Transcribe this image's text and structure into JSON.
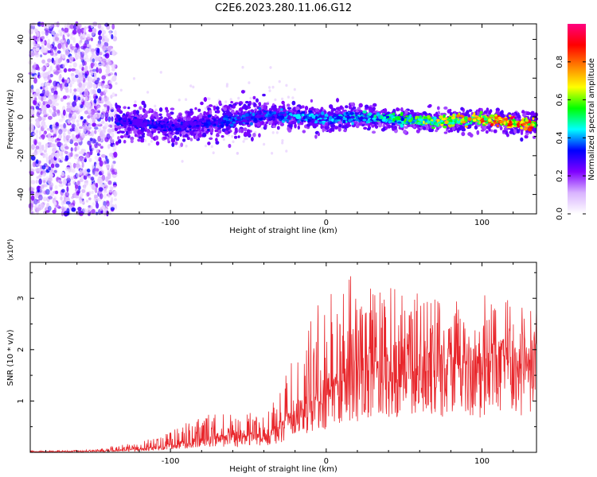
{
  "figure_title": "C2E6.2023.280.11.06.G12",
  "chart_data": [
    {
      "type": "heatmap",
      "xlabel": "Height of straight line (km)",
      "ylabel": "Frequency (Hz)",
      "xlim": [
        -190,
        135
      ],
      "ylim": [
        -50,
        48
      ],
      "x_ticks": [
        -100,
        0,
        100
      ],
      "y_ticks": [
        -40,
        -20,
        0,
        20,
        40
      ],
      "colorbar": {
        "label": "Normalized spectral amplitude",
        "range": [
          0.0,
          1.0
        ],
        "ticks": [
          0.0,
          0.2,
          0.4,
          0.6,
          0.8
        ],
        "colormap": [
          "#ffffff",
          "#d9b3ff",
          "#8000ff",
          "#0000ff",
          "#00ffff",
          "#00ff00",
          "#ffff00",
          "#ff8000",
          "#ff0000",
          "#ff0080"
        ]
      },
      "ridge": {
        "x": [
          -135,
          -120,
          -100,
          -80,
          -60,
          -40,
          -20,
          0,
          20,
          40,
          60,
          80,
          100,
          120,
          135
        ],
        "frequency": [
          -2,
          -3,
          -5,
          -4,
          -2,
          1,
          0,
          -1,
          0,
          -1,
          -2,
          -2,
          -1,
          -3,
          -4
        ],
        "peak_amplitude": [
          0.35,
          0.35,
          0.35,
          0.35,
          0.4,
          0.4,
          0.45,
          0.45,
          0.5,
          0.55,
          0.65,
          0.75,
          0.9,
          0.95,
          0.95
        ]
      },
      "noise_region_x": [
        -190,
        -135
      ]
    },
    {
      "type": "line",
      "xlabel": "Height of straight line (km)",
      "ylabel": "SNR (10 * v/v)",
      "scale_label": "(x10⁴)",
      "xlim": [
        -190,
        135
      ],
      "ylim": [
        0,
        3.7
      ],
      "x_ticks": [
        -100,
        0,
        100
      ],
      "y_ticks": [
        1,
        2,
        3
      ],
      "series": [
        {
          "color": "#e8262b",
          "envelope_x": [
            -190,
            -150,
            -120,
            -100,
            -80,
            -60,
            -40,
            -30,
            -20,
            -10,
            0,
            10,
            20,
            30,
            40,
            50,
            60,
            80,
            100,
            120,
            135
          ],
          "envelope_mean": [
            0.01,
            0.02,
            0.05,
            0.12,
            0.22,
            0.25,
            0.28,
            0.4,
            0.7,
            0.85,
            1.0,
            1.2,
            1.35,
            1.45,
            1.5,
            1.5,
            1.45,
            1.45,
            1.5,
            1.55,
            1.6
          ],
          "envelope_max": [
            0.03,
            0.05,
            0.2,
            0.4,
            0.75,
            0.8,
            0.75,
            1.2,
            2.1,
            2.8,
            3.0,
            3.3,
            3.7,
            3.4,
            3.4,
            3.3,
            3.1,
            3.0,
            3.1,
            3.0,
            2.9
          ]
        }
      ]
    }
  ]
}
